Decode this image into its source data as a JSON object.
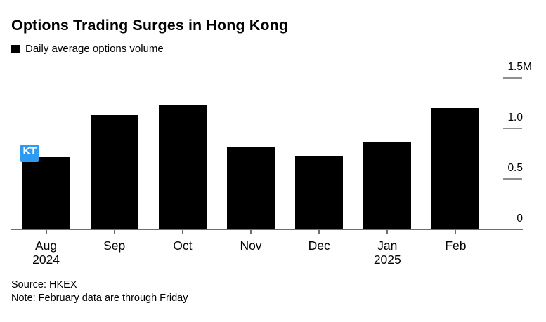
{
  "page": {
    "background": "#ffffff"
  },
  "header": {
    "title": "Options Trading Surges in Hong Kong",
    "legend": {
      "label": "Daily average options volume",
      "swatch_color": "#000000"
    }
  },
  "annotation_overlay": {
    "badge_label": "KT",
    "badge_color": "#2e9af2"
  },
  "footer": {
    "source": "Source: HKEX",
    "note": "Note: February data are through Friday"
  },
  "chart_data": {
    "type": "bar",
    "title": "Options Trading Surges in Hong Kong",
    "series_label": "Daily average options volume",
    "categories": [
      "Aug 2024",
      "Sep",
      "Oct",
      "Nov",
      "Dec",
      "Jan 2025",
      "Feb"
    ],
    "x_labels": [
      [
        "Aug",
        "2024"
      ],
      [
        "Sep"
      ],
      [
        "Oct"
      ],
      [
        "Nov"
      ],
      [
        "Dec"
      ],
      [
        "Jan",
        "2025"
      ],
      [
        "Feb"
      ]
    ],
    "values": [
      0.71,
      1.12,
      1.22,
      0.81,
      0.72,
      0.86,
      1.19
    ],
    "unit": "M",
    "ylim": [
      0,
      1.5
    ],
    "yticks": [
      {
        "value": 0,
        "label": "0",
        "suffix": ""
      },
      {
        "value": 0.5,
        "label": "0.5",
        "suffix": ""
      },
      {
        "value": 1.0,
        "label": "1.0",
        "suffix": ""
      },
      {
        "value": 1.5,
        "label": "1.5",
        "suffix": "M"
      }
    ],
    "bar_color": "#000000",
    "axis_color": "#6e6e6e",
    "ytick_color": "#8f8f8f",
    "grid": false,
    "legend_position": "top-left",
    "y_axis_side": "right",
    "xlabel": "",
    "ylabel": ""
  }
}
